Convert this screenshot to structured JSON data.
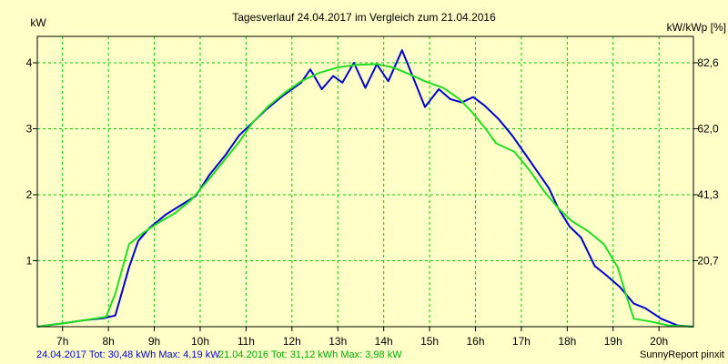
{
  "chart_data": {
    "type": "line",
    "title": "Tagesverlauf 24.04.2017 im Vergleich zum 21.04.2016",
    "ylabel_left": "kW",
    "ylabel_right": "kW/kWp [%]",
    "xlim": [
      6.45,
      20.75
    ],
    "ylim": [
      0,
      4.4
    ],
    "grid": true,
    "colors": {
      "background": "#ffffc8",
      "grid": "#00cc00",
      "series_2017": "#0000cc",
      "series_2016": "#22dd22",
      "footer_2017": "#0000cc",
      "footer_2016": "#00aa00"
    },
    "x_ticks": [
      {
        "x": 7,
        "label": "7h"
      },
      {
        "x": 8,
        "label": "8h"
      },
      {
        "x": 9,
        "label": "9h"
      },
      {
        "x": 10,
        "label": "10h"
      },
      {
        "x": 11,
        "label": "11h"
      },
      {
        "x": 12,
        "label": "12h"
      },
      {
        "x": 13,
        "label": "13h"
      },
      {
        "x": 14,
        "label": "14h"
      },
      {
        "x": 15,
        "label": "15h"
      },
      {
        "x": 16,
        "label": "16h"
      },
      {
        "x": 17,
        "label": "17h"
      },
      {
        "x": 18,
        "label": "18h"
      },
      {
        "x": 19,
        "label": "19h"
      },
      {
        "x": 20,
        "label": "20h"
      }
    ],
    "y_ticks_left": [
      {
        "y": 1,
        "label": "1"
      },
      {
        "y": 2,
        "label": "2"
      },
      {
        "y": 3,
        "label": "3"
      },
      {
        "y": 4,
        "label": "4"
      }
    ],
    "y_ticks_right": [
      {
        "y": 1,
        "label": "20,7"
      },
      {
        "y": 2,
        "label": "41,3"
      },
      {
        "y": 3,
        "label": "62,0"
      },
      {
        "y": 4,
        "label": "82,6"
      }
    ],
    "series": [
      {
        "color": "#0000cc",
        "points": [
          [
            6.45,
            0.0
          ],
          [
            7.0,
            0.05
          ],
          [
            7.5,
            0.1
          ],
          [
            7.9,
            0.13
          ],
          [
            8.15,
            0.17
          ],
          [
            8.45,
            0.9
          ],
          [
            8.65,
            1.3
          ],
          [
            8.9,
            1.5
          ],
          [
            9.25,
            1.7
          ],
          [
            9.6,
            1.85
          ],
          [
            9.9,
            1.98
          ],
          [
            10.2,
            2.3
          ],
          [
            10.55,
            2.6
          ],
          [
            10.85,
            2.9
          ],
          [
            11.15,
            3.1
          ],
          [
            11.45,
            3.3
          ],
          [
            11.8,
            3.5
          ],
          [
            12.2,
            3.7
          ],
          [
            12.4,
            3.9
          ],
          [
            12.65,
            3.6
          ],
          [
            12.9,
            3.8
          ],
          [
            13.1,
            3.7
          ],
          [
            13.35,
            4.0
          ],
          [
            13.6,
            3.62
          ],
          [
            13.85,
            3.98
          ],
          [
            14.1,
            3.72
          ],
          [
            14.4,
            4.19
          ],
          [
            14.6,
            3.85
          ],
          [
            14.9,
            3.33
          ],
          [
            15.2,
            3.6
          ],
          [
            15.45,
            3.45
          ],
          [
            15.7,
            3.4
          ],
          [
            15.95,
            3.48
          ],
          [
            16.2,
            3.35
          ],
          [
            16.5,
            3.15
          ],
          [
            16.8,
            2.9
          ],
          [
            17.1,
            2.6
          ],
          [
            17.4,
            2.3
          ],
          [
            17.6,
            2.1
          ],
          [
            17.8,
            1.8
          ],
          [
            18.05,
            1.52
          ],
          [
            18.3,
            1.35
          ],
          [
            18.6,
            0.92
          ],
          [
            18.85,
            0.78
          ],
          [
            19.15,
            0.6
          ],
          [
            19.45,
            0.35
          ],
          [
            19.7,
            0.28
          ],
          [
            20.05,
            0.12
          ],
          [
            20.4,
            0.02
          ],
          [
            20.75,
            0.0
          ]
        ]
      },
      {
        "color": "#22dd22",
        "points": [
          [
            6.45,
            0.0
          ],
          [
            7.0,
            0.05
          ],
          [
            7.5,
            0.1
          ],
          [
            7.95,
            0.15
          ],
          [
            8.15,
            0.5
          ],
          [
            8.45,
            1.25
          ],
          [
            8.75,
            1.42
          ],
          [
            9.1,
            1.58
          ],
          [
            9.45,
            1.72
          ],
          [
            9.8,
            1.92
          ],
          [
            10.15,
            2.2
          ],
          [
            10.5,
            2.5
          ],
          [
            10.85,
            2.8
          ],
          [
            11.15,
            3.1
          ],
          [
            11.5,
            3.35
          ],
          [
            11.85,
            3.55
          ],
          [
            12.2,
            3.72
          ],
          [
            12.6,
            3.85
          ],
          [
            13.0,
            3.93
          ],
          [
            13.4,
            3.97
          ],
          [
            13.85,
            3.98
          ],
          [
            14.2,
            3.93
          ],
          [
            14.55,
            3.83
          ],
          [
            14.9,
            3.72
          ],
          [
            15.3,
            3.62
          ],
          [
            15.65,
            3.45
          ],
          [
            15.9,
            3.27
          ],
          [
            16.2,
            3.02
          ],
          [
            16.45,
            2.78
          ],
          [
            16.85,
            2.65
          ],
          [
            17.2,
            2.35
          ],
          [
            17.5,
            2.05
          ],
          [
            17.8,
            1.8
          ],
          [
            18.1,
            1.6
          ],
          [
            18.45,
            1.45
          ],
          [
            18.8,
            1.25
          ],
          [
            19.1,
            0.9
          ],
          [
            19.25,
            0.55
          ],
          [
            19.45,
            0.12
          ],
          [
            19.8,
            0.08
          ],
          [
            20.2,
            0.02
          ],
          [
            20.75,
            0.0
          ]
        ]
      }
    ]
  },
  "footer": {
    "stats_2017": "24.04.2017 Tot: 30,48 kWh Max: 4,19 kW",
    "stats_2016": "21.04.2016 Tot: 31,12 kWh Max: 3,98 kW",
    "brand": "SunnyReport pinxit"
  }
}
